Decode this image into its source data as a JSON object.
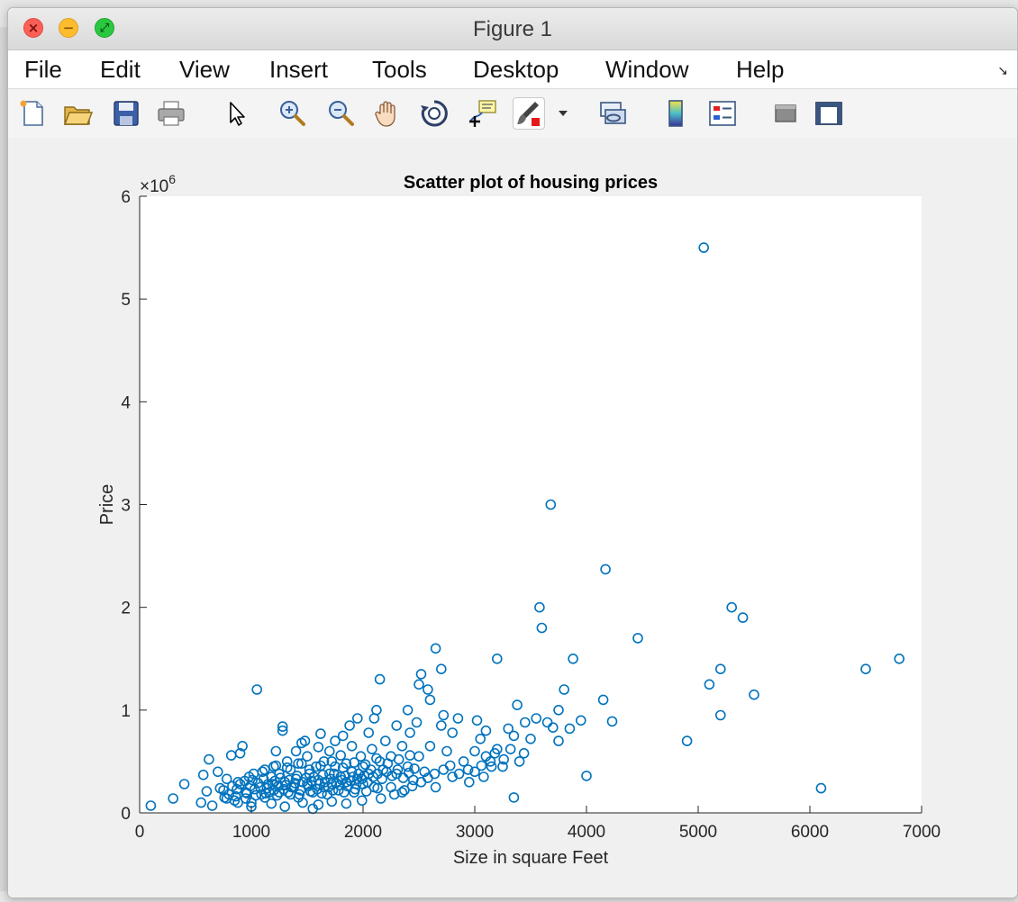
{
  "window": {
    "title": "Figure 1",
    "close_icon": "×",
    "minimize_icon": "−",
    "maximize_icon": "⤢"
  },
  "menubar": {
    "items": [
      "File",
      "Edit",
      "View",
      "Insert",
      "Tools",
      "Desktop",
      "Window",
      "Help"
    ],
    "overflow_icon": "↘"
  },
  "toolbar": {
    "tools": [
      "new-figure-icon",
      "open-file-icon",
      "save-icon",
      "print-icon",
      "pointer-icon",
      "zoom-in-icon",
      "zoom-out-icon",
      "pan-hand-icon",
      "rotate-3d-icon",
      "data-cursor-icon",
      "brush-icon",
      "brush-dropdown-icon",
      "link-plot-icon",
      "colorbar-icon",
      "legend-icon",
      "hide-plot-tools-icon",
      "show-plot-tools-icon"
    ]
  },
  "colors": {
    "marker": "#0072bd",
    "axes_background": "#ffffff",
    "figure_background": "#f0f0f0"
  },
  "chart_data": {
    "type": "scatter",
    "title": "Scatter plot of housing prices",
    "xlabel": "Size in square Feet",
    "ylabel": "Price",
    "xlim": [
      0,
      7000
    ],
    "ylim": [
      0,
      6000000
    ],
    "y_exponent_label": "×10",
    "y_exponent_power": "6",
    "xticks": [
      0,
      1000,
      2000,
      3000,
      4000,
      5000,
      6000,
      7000
    ],
    "xtick_labels": [
      "0",
      "1000",
      "2000",
      "3000",
      "4000",
      "5000",
      "6000",
      "7000"
    ],
    "yticks": [
      0,
      1000000,
      2000000,
      3000000,
      4000000,
      5000000,
      6000000
    ],
    "ytick_labels": [
      "0",
      "1",
      "2",
      "3",
      "4",
      "5",
      "6"
    ],
    "grid": false,
    "marker": "open circle",
    "points": [
      [
        100,
        70000
      ],
      [
        300,
        140000
      ],
      [
        400,
        280000
      ],
      [
        550,
        100000
      ],
      [
        570,
        370000
      ],
      [
        600,
        210000
      ],
      [
        620,
        520000
      ],
      [
        650,
        70000
      ],
      [
        700,
        400000
      ],
      [
        720,
        240000
      ],
      [
        760,
        150000
      ],
      [
        780,
        330000
      ],
      [
        820,
        560000
      ],
      [
        850,
        120000
      ],
      [
        880,
        300000
      ],
      [
        900,
        580000
      ],
      [
        920,
        650000
      ],
      [
        950,
        200000
      ],
      [
        980,
        350000
      ],
      [
        1000,
        100000
      ],
      [
        1050,
        1200000
      ],
      [
        1080,
        250000
      ],
      [
        1100,
        400000
      ],
      [
        1120,
        150000
      ],
      [
        1150,
        280000
      ],
      [
        1180,
        350000
      ],
      [
        1200,
        450000
      ],
      [
        1200,
        220000
      ],
      [
        1220,
        600000
      ],
      [
        1250,
        200000
      ],
      [
        1250,
        380000
      ],
      [
        1280,
        800000
      ],
      [
        1280,
        840000
      ],
      [
        1300,
        300000
      ],
      [
        1320,
        500000
      ],
      [
        1350,
        180000
      ],
      [
        1350,
        420000
      ],
      [
        1380,
        250000
      ],
      [
        1400,
        330000
      ],
      [
        1400,
        600000
      ],
      [
        1420,
        150000
      ],
      [
        1450,
        480000
      ],
      [
        1450,
        680000
      ],
      [
        1480,
        700000
      ],
      [
        1500,
        280000
      ],
      [
        1500,
        550000
      ],
      [
        1520,
        380000
      ],
      [
        1550,
        40000
      ],
      [
        1550,
        200000
      ],
      [
        1580,
        450000
      ],
      [
        1600,
        320000
      ],
      [
        1600,
        640000
      ],
      [
        1620,
        770000
      ],
      [
        1650,
        250000
      ],
      [
        1650,
        500000
      ],
      [
        1680,
        180000
      ],
      [
        1700,
        380000
      ],
      [
        1700,
        600000
      ],
      [
        1720,
        280000
      ],
      [
        1750,
        450000
      ],
      [
        1750,
        700000
      ],
      [
        1780,
        220000
      ],
      [
        1800,
        350000
      ],
      [
        1800,
        560000
      ],
      [
        1820,
        750000
      ],
      [
        1850,
        300000
      ],
      [
        1850,
        480000
      ],
      [
        1880,
        850000
      ],
      [
        1900,
        400000
      ],
      [
        1900,
        650000
      ],
      [
        1920,
        200000
      ],
      [
        1950,
        330000
      ],
      [
        1950,
        920000
      ],
      [
        1980,
        550000
      ],
      [
        2000,
        280000
      ],
      [
        2000,
        450000
      ],
      [
        2050,
        780000
      ],
      [
        2050,
        380000
      ],
      [
        2080,
        620000
      ],
      [
        2100,
        250000
      ],
      [
        2100,
        920000
      ],
      [
        2120,
        1000000
      ],
      [
        2150,
        1300000
      ],
      [
        2150,
        500000
      ],
      [
        2180,
        420000
      ],
      [
        2200,
        700000
      ],
      [
        2250,
        550000
      ],
      [
        2250,
        250000
      ],
      [
        2300,
        380000
      ],
      [
        2300,
        850000
      ],
      [
        2350,
        650000
      ],
      [
        2350,
        200000
      ],
      [
        2400,
        450000
      ],
      [
        2400,
        1000000
      ],
      [
        2420,
        780000
      ],
      [
        2450,
        320000
      ],
      [
        2480,
        880000
      ],
      [
        2500,
        1250000
      ],
      [
        2500,
        550000
      ],
      [
        2520,
        1350000
      ],
      [
        2550,
        400000
      ],
      [
        2580,
        1200000
      ],
      [
        2600,
        1100000
      ],
      [
        2600,
        650000
      ],
      [
        2650,
        1600000
      ],
      [
        2650,
        250000
      ],
      [
        2700,
        1400000
      ],
      [
        2700,
        850000
      ],
      [
        2720,
        950000
      ],
      [
        2750,
        600000
      ],
      [
        2800,
        780000
      ],
      [
        2800,
        350000
      ],
      [
        2850,
        920000
      ],
      [
        2900,
        500000
      ],
      [
        2950,
        300000
      ],
      [
        3000,
        600000
      ],
      [
        3000,
        400000
      ],
      [
        3020,
        900000
      ],
      [
        3050,
        720000
      ],
      [
        3080,
        350000
      ],
      [
        3100,
        550000
      ],
      [
        3100,
        800000
      ],
      [
        3150,
        450000
      ],
      [
        3200,
        1500000
      ],
      [
        3200,
        620000
      ],
      [
        3250,
        450000
      ],
      [
        3300,
        820000
      ],
      [
        3350,
        750000
      ],
      [
        3350,
        150000
      ],
      [
        3380,
        1050000
      ],
      [
        3400,
        500000
      ],
      [
        3450,
        880000
      ],
      [
        3500,
        720000
      ],
      [
        3550,
        920000
      ],
      [
        3580,
        2000000
      ],
      [
        3600,
        1800000
      ],
      [
        3650,
        880000
      ],
      [
        3680,
        3000000
      ],
      [
        3700,
        830000
      ],
      [
        3750,
        1000000
      ],
      [
        3750,
        700000
      ],
      [
        3800,
        1200000
      ],
      [
        3850,
        820000
      ],
      [
        3880,
        1500000
      ],
      [
        3950,
        900000
      ],
      [
        4000,
        360000
      ],
      [
        4150,
        1100000
      ],
      [
        4170,
        2370000
      ],
      [
        4230,
        890000
      ],
      [
        4460,
        1700000
      ],
      [
        4900,
        700000
      ],
      [
        5050,
        5500000
      ],
      [
        5100,
        1250000
      ],
      [
        5200,
        950000
      ],
      [
        5200,
        1400000
      ],
      [
        5300,
        2000000
      ],
      [
        5400,
        1900000
      ],
      [
        5500,
        1150000
      ],
      [
        6100,
        240000
      ],
      [
        6500,
        1400000
      ],
      [
        6800,
        1500000
      ],
      [
        750,
        220000
      ],
      [
        800,
        180000
      ],
      [
        830,
        260000
      ],
      [
        870,
        230000
      ],
      [
        900,
        280000
      ],
      [
        940,
        310000
      ],
      [
        960,
        190000
      ],
      [
        990,
        260000
      ],
      [
        1010,
        320000
      ],
      [
        1030,
        230000
      ],
      [
        1060,
        290000
      ],
      [
        1090,
        180000
      ],
      [
        1110,
        330000
      ],
      [
        1140,
        240000
      ],
      [
        1160,
        200000
      ],
      [
        1190,
        280000
      ],
      [
        1210,
        310000
      ],
      [
        1240,
        260000
      ],
      [
        1260,
        340000
      ],
      [
        1290,
        230000
      ],
      [
        1310,
        270000
      ],
      [
        1340,
        320000
      ],
      [
        1360,
        250000
      ],
      [
        1390,
        290000
      ],
      [
        1410,
        360000
      ],
      [
        1440,
        220000
      ],
      [
        1460,
        300000
      ],
      [
        1490,
        340000
      ],
      [
        1510,
        260000
      ],
      [
        1540,
        310000
      ],
      [
        1560,
        350000
      ],
      [
        1590,
        230000
      ],
      [
        1610,
        280000
      ],
      [
        1640,
        370000
      ],
      [
        1660,
        300000
      ],
      [
        1690,
        250000
      ],
      [
        1710,
        330000
      ],
      [
        1740,
        380000
      ],
      [
        1760,
        290000
      ],
      [
        1790,
        270000
      ],
      [
        1810,
        320000
      ],
      [
        1840,
        360000
      ],
      [
        1860,
        260000
      ],
      [
        1890,
        310000
      ],
      [
        1910,
        350000
      ],
      [
        1940,
        280000
      ],
      [
        1960,
        380000
      ],
      [
        1990,
        330000
      ],
      [
        2010,
        360000
      ],
      [
        2040,
        300000
      ],
      [
        2070,
        420000
      ],
      [
        2090,
        350000
      ],
      [
        2130,
        380000
      ],
      [
        2170,
        330000
      ],
      [
        2210,
        400000
      ],
      [
        2260,
        360000
      ],
      [
        2310,
        420000
      ],
      [
        2360,
        340000
      ],
      [
        2410,
        390000
      ],
      [
        2460,
        430000
      ],
      [
        780,
        140000
      ],
      [
        860,
        160000
      ],
      [
        950,
        140000
      ],
      [
        1040,
        170000
      ],
      [
        1130,
        190000
      ],
      [
        1230,
        170000
      ],
      [
        1330,
        200000
      ],
      [
        1430,
        180000
      ],
      [
        1530,
        210000
      ],
      [
        1630,
        190000
      ],
      [
        1730,
        220000
      ],
      [
        1830,
        200000
      ],
      [
        1930,
        230000
      ],
      [
        2030,
        210000
      ],
      [
        2130,
        240000
      ],
      [
        1020,
        380000
      ],
      [
        1120,
        420000
      ],
      [
        1220,
        460000
      ],
      [
        1320,
        440000
      ],
      [
        1420,
        480000
      ],
      [
        1520,
        420000
      ],
      [
        1620,
        460000
      ],
      [
        1720,
        500000
      ],
      [
        1820,
        440000
      ],
      [
        1920,
        490000
      ],
      [
        2020,
        470000
      ],
      [
        2120,
        530000
      ],
      [
        2220,
        480000
      ],
      [
        2320,
        520000
      ],
      [
        2420,
        560000
      ],
      [
        880,
        100000
      ],
      [
        1000,
        60000
      ],
      [
        1180,
        90000
      ],
      [
        1300,
        60000
      ],
      [
        1460,
        100000
      ],
      [
        1600,
        80000
      ],
      [
        1720,
        110000
      ],
      [
        1850,
        90000
      ],
      [
        1990,
        120000
      ],
      [
        2160,
        140000
      ],
      [
        2280,
        180000
      ],
      [
        2370,
        220000
      ],
      [
        2440,
        260000
      ],
      [
        2520,
        300000
      ],
      [
        2580,
        340000
      ],
      [
        2640,
        380000
      ],
      [
        2720,
        420000
      ],
      [
        2780,
        460000
      ],
      [
        2860,
        380000
      ],
      [
        2940,
        420000
      ],
      [
        3060,
        460000
      ],
      [
        3140,
        500000
      ],
      [
        3180,
        580000
      ],
      [
        3260,
        520000
      ],
      [
        3320,
        620000
      ],
      [
        3440,
        580000
      ]
    ]
  }
}
